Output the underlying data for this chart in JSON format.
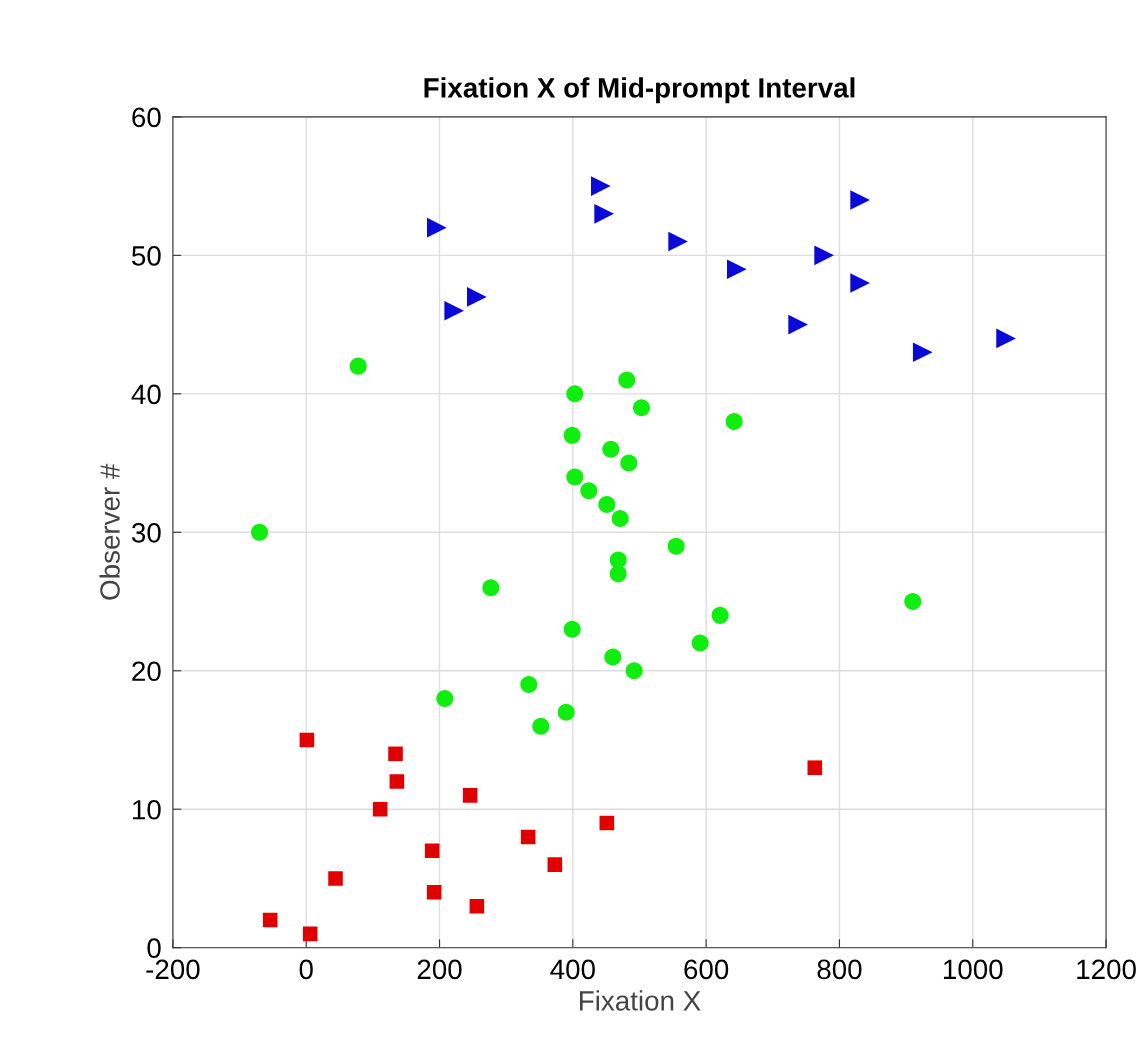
{
  "chart_data": {
    "type": "scatter",
    "title": "Fixation X of Mid-prompt Interval",
    "xlabel": "Fixation X",
    "ylabel": "Observer #",
    "xlim": [
      -200,
      1200
    ],
    "xticks": [
      -200,
      0,
      200,
      400,
      600,
      800,
      1000,
      1200
    ],
    "ylim": [
      0,
      60
    ],
    "yticks": [
      0,
      10,
      20,
      30,
      40,
      50,
      60
    ],
    "grid": true,
    "series": [
      {
        "color": "#e00000",
        "marker": "square",
        "x": [
          1,
          134,
          136,
          111,
          246,
          189,
          44,
          192,
          256,
          333,
          373,
          451,
          -54,
          6,
          763
        ],
        "values": [
          15,
          14,
          12,
          10,
          11,
          7,
          5,
          4,
          3,
          8,
          6,
          9,
          2,
          1,
          13
        ]
      },
      {
        "color": "#10ee10",
        "marker": "circle",
        "x": [
          78,
          -70,
          403,
          503,
          481,
          642,
          399,
          457,
          484,
          403,
          424,
          451,
          471,
          555,
          468,
          468,
          277,
          910,
          621,
          399,
          591,
          460,
          492,
          334,
          208,
          390,
          352
        ],
        "values": [
          42,
          30,
          40,
          39,
          41,
          38,
          37,
          36,
          35,
          34,
          33,
          32,
          31,
          29,
          28,
          27,
          26,
          25,
          24,
          23,
          22,
          21,
          20,
          19,
          18,
          17,
          16
        ]
      },
      {
        "color": "#0a0ad8",
        "marker": "triangle",
        "x": [
          196,
          442,
          447,
          558,
          831,
          777,
          646,
          831,
          256,
          222,
          738,
          1050,
          925
        ],
        "values": [
          52,
          55,
          53,
          51,
          54,
          50,
          49,
          48,
          47,
          46,
          45,
          44,
          43
        ]
      }
    ]
  }
}
